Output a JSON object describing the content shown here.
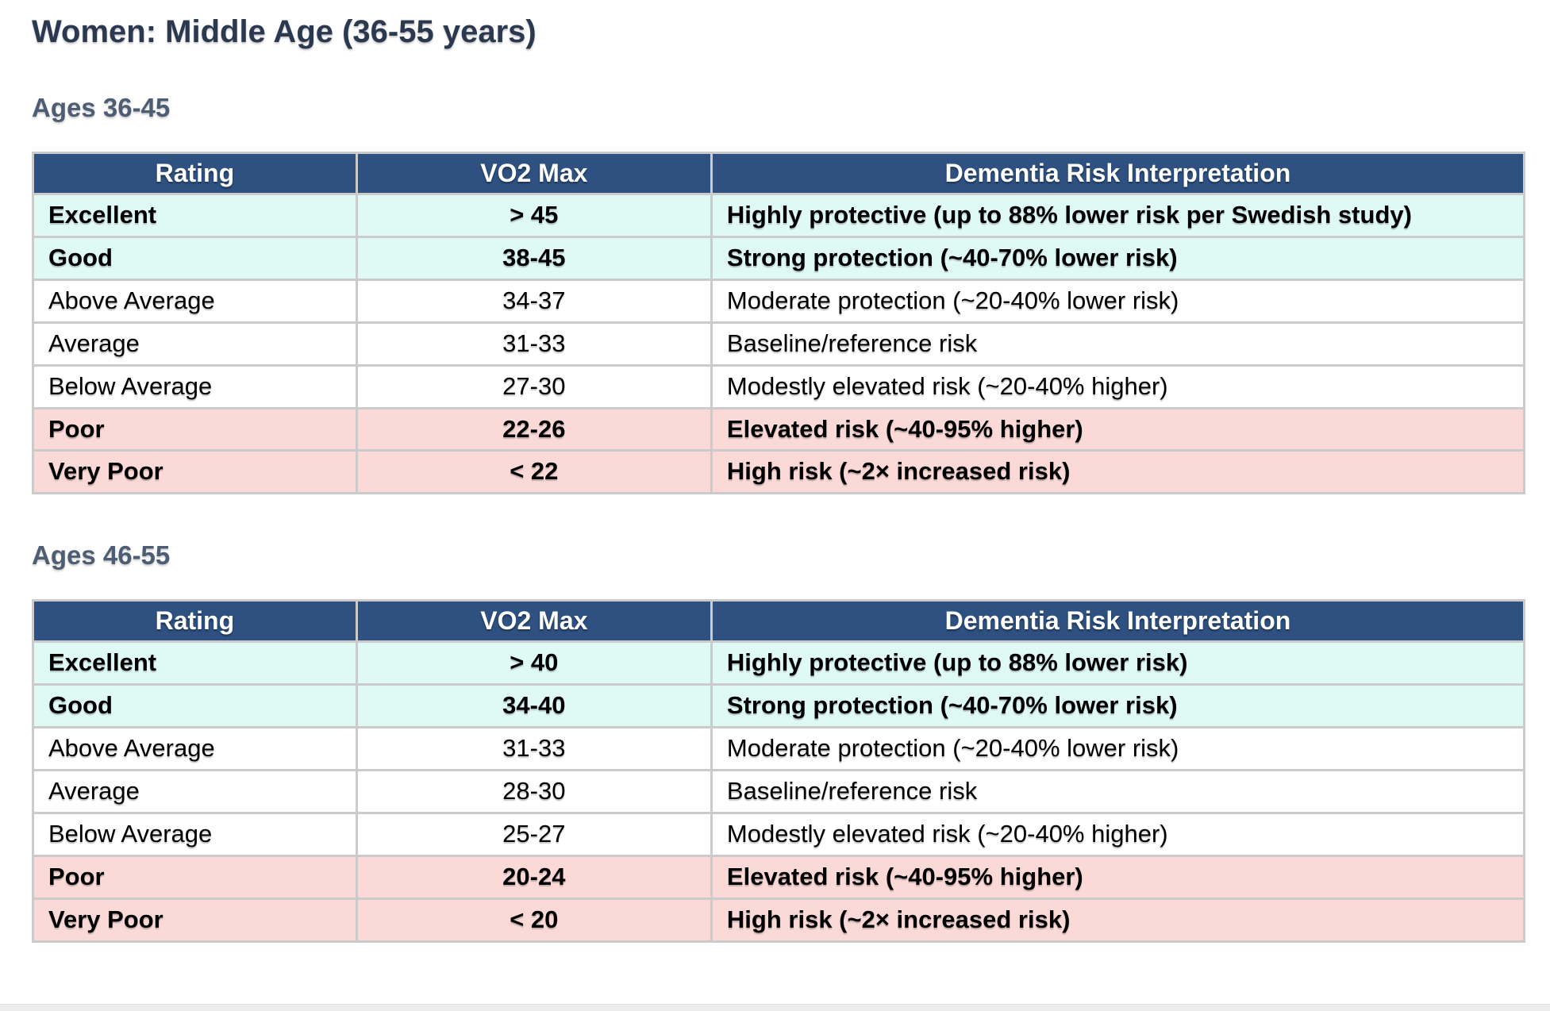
{
  "page": {
    "title": "Women: Middle Age (36-55 years)"
  },
  "colors": {
    "header_bg": "#2E5181",
    "header_text": "#FFFFFF",
    "row_protective_bg": "#DFFAF5",
    "row_neutral_bg": "#FFFFFF",
    "row_risk_bg": "#FBD9D6",
    "border": "#CBCBCB",
    "title_text": "#2A3950",
    "section_text": "#4D5D73"
  },
  "tables": [
    {
      "section_label": "Ages 36-45",
      "columns": [
        "Rating",
        "VO2 Max",
        "Dementia Risk Interpretation"
      ],
      "rows": [
        {
          "rating": "Excellent",
          "vo2max": "> 45",
          "interpretation": "Highly protective (up to 88% lower risk per Swedish study)",
          "tone": "good",
          "bold": true
        },
        {
          "rating": "Good",
          "vo2max": "38-45",
          "interpretation": "Strong protection (~40-70% lower risk)",
          "tone": "good",
          "bold": true
        },
        {
          "rating": "Above Average",
          "vo2max": "34-37",
          "interpretation": "Moderate protection (~20-40% lower risk)",
          "tone": "neutral",
          "bold": false
        },
        {
          "rating": "Average",
          "vo2max": "31-33",
          "interpretation": "Baseline/reference risk",
          "tone": "neutral",
          "bold": false
        },
        {
          "rating": "Below Average",
          "vo2max": "27-30",
          "interpretation": "Modestly elevated risk (~20-40% higher)",
          "tone": "neutral",
          "bold": false
        },
        {
          "rating": "Poor",
          "vo2max": "22-26",
          "interpretation": "Elevated risk (~40-95% higher)",
          "tone": "bad",
          "bold": true
        },
        {
          "rating": "Very Poor",
          "vo2max": "< 22",
          "interpretation": "High risk (~2× increased risk)",
          "tone": "bad",
          "bold": true
        }
      ]
    },
    {
      "section_label": "Ages 46-55",
      "columns": [
        "Rating",
        "VO2 Max",
        "Dementia Risk Interpretation"
      ],
      "rows": [
        {
          "rating": "Excellent",
          "vo2max": "> 40",
          "interpretation": "Highly protective (up to 88% lower risk)",
          "tone": "good",
          "bold": true
        },
        {
          "rating": "Good",
          "vo2max": "34-40",
          "interpretation": "Strong protection (~40-70% lower risk)",
          "tone": "good",
          "bold": true
        },
        {
          "rating": "Above Average",
          "vo2max": "31-33",
          "interpretation": "Moderate protection (~20-40% lower risk)",
          "tone": "neutral",
          "bold": false
        },
        {
          "rating": "Average",
          "vo2max": "28-30",
          "interpretation": "Baseline/reference risk",
          "tone": "neutral",
          "bold": false
        },
        {
          "rating": "Below Average",
          "vo2max": "25-27",
          "interpretation": "Modestly elevated risk (~20-40% higher)",
          "tone": "neutral",
          "bold": false
        },
        {
          "rating": "Poor",
          "vo2max": "20-24",
          "interpretation": "Elevated risk (~40-95% higher)",
          "tone": "bad",
          "bold": true
        },
        {
          "rating": "Very Poor",
          "vo2max": "< 20",
          "interpretation": "High risk (~2× increased risk)",
          "tone": "bad",
          "bold": true
        }
      ]
    }
  ]
}
